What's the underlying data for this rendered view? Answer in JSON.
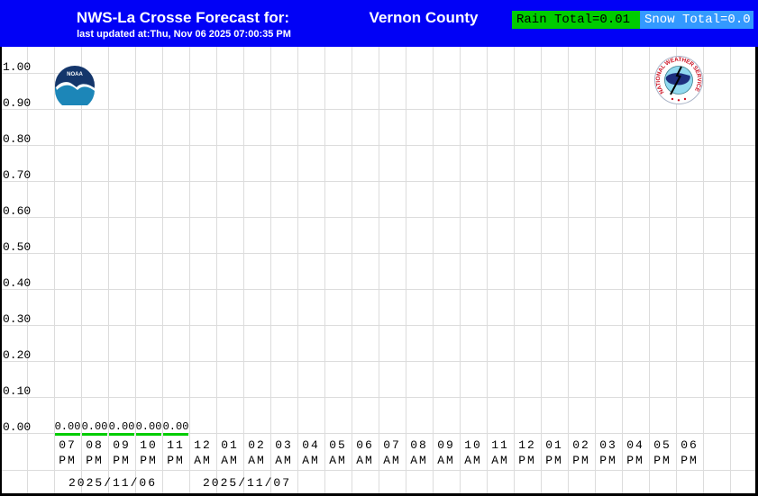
{
  "header": {
    "title": "NWS-La Crosse Forecast for:",
    "updated": "last updated at:Thu, Nov 06 2025 07:00:35 PM",
    "location": "Vernon County",
    "rain_total": "Rain Total=0.01",
    "snow_total": "Snow Total=0.0"
  },
  "colors": {
    "header_bg": "#0101f6",
    "rain_badge_bg": "#00cc00",
    "snow_badge_bg": "#3399ff",
    "grid_line": "#dcdcdc",
    "rain_line": "#00cc00"
  },
  "axes": {
    "y_ticks": [
      "1.00",
      "0.90",
      "0.80",
      "0.70",
      "0.60",
      "0.50",
      "0.40",
      "0.30",
      "0.20",
      "0.10",
      "0.00"
    ],
    "hours": [
      "07",
      "08",
      "09",
      "10",
      "11",
      "12",
      "01",
      "02",
      "03",
      "04",
      "05",
      "06",
      "07",
      "08",
      "09",
      "10",
      "11",
      "12",
      "01",
      "02",
      "03",
      "04",
      "05",
      "06"
    ],
    "meridiem": [
      "PM",
      "PM",
      "PM",
      "PM",
      "PM",
      "AM",
      "AM",
      "AM",
      "AM",
      "AM",
      "AM",
      "AM",
      "AM",
      "AM",
      "AM",
      "AM",
      "AM",
      "PM",
      "PM",
      "PM",
      "PM",
      "PM",
      "PM",
      "PM"
    ],
    "date_labels": [
      "2025/11/06",
      "2025/11/07"
    ]
  },
  "values": {
    "rain_hourly_labels": [
      "0.00",
      "0.00",
      "0.00",
      "0.00",
      "0.00"
    ]
  },
  "logos": {
    "noaa_text": "NOAA",
    "nws_ring_text": "NATIONAL WEATHER SERVICE"
  },
  "chart_data": {
    "type": "line",
    "title": "NWS-La Crosse Forecast for: Vernon County",
    "subtitle": "last updated at:Thu, Nov 06 2025 07:00:35 PM",
    "xlabel": "",
    "ylabel": "",
    "ylim": [
      0.0,
      1.0
    ],
    "y_tick_step": 0.1,
    "grid": true,
    "x": [
      "07 PM",
      "08 PM",
      "09 PM",
      "10 PM",
      "11 PM",
      "12 AM",
      "01 AM",
      "02 AM",
      "03 AM",
      "04 AM",
      "05 AM",
      "06 AM",
      "07 AM",
      "08 AM",
      "09 AM",
      "10 AM",
      "11 AM",
      "12 PM",
      "01 PM",
      "02 PM",
      "03 PM",
      "04 PM",
      "05 PM",
      "06 PM"
    ],
    "x_dates": [
      "2025/11/06",
      "2025/11/07"
    ],
    "series": [
      {
        "name": "Rain",
        "color": "#00cc00",
        "values": [
          0.0,
          0.0,
          0.0,
          0.0,
          0.0
        ],
        "total": 0.01
      },
      {
        "name": "Snow",
        "color": "#3399ff",
        "values": [],
        "total": 0.0
      }
    ],
    "annotations": [
      "Rain Total=0.01",
      "Snow Total=0.0"
    ]
  }
}
